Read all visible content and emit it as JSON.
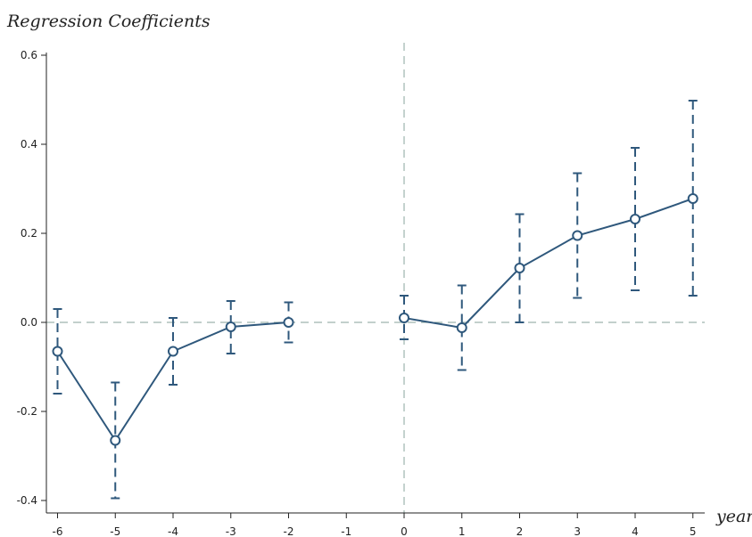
{
  "chart_data": {
    "type": "line",
    "ylabel": "Regression Coefficients",
    "xlabel": "year",
    "xlim": [
      -6,
      5
    ],
    "ylim": [
      -0.4,
      0.6
    ],
    "x_ticks": [
      "-6",
      "-5",
      "-4",
      "-3",
      "-2",
      "-1",
      "0",
      "1",
      "2",
      "3",
      "4",
      "5"
    ],
    "y_ticks": [
      "-0.4",
      "-0.2",
      "0.0",
      "0.2",
      "0.4",
      "0.6"
    ],
    "reference_lines": {
      "horizontal_y": 0,
      "vertical_x": 0
    },
    "series": [
      {
        "segments": [
          [
            {
              "x": -6,
              "y": -0.065,
              "ci_low": -0.16,
              "ci_high": 0.03
            },
            {
              "x": -5,
              "y": -0.265,
              "ci_low": -0.395,
              "ci_high": -0.135
            },
            {
              "x": -4,
              "y": -0.065,
              "ci_low": -0.14,
              "ci_high": 0.01
            },
            {
              "x": -3,
              "y": -0.01,
              "ci_low": -0.07,
              "ci_high": 0.048
            },
            {
              "x": -2,
              "y": 0.0,
              "ci_low": -0.045,
              "ci_high": 0.045
            }
          ],
          [
            {
              "x": 0,
              "y": 0.01,
              "ci_low": -0.038,
              "ci_high": 0.06
            },
            {
              "x": 1,
              "y": -0.012,
              "ci_low": -0.107,
              "ci_high": 0.083
            },
            {
              "x": 2,
              "y": 0.122,
              "ci_low": 0.0,
              "ci_high": 0.243
            },
            {
              "x": 3,
              "y": 0.195,
              "ci_low": 0.055,
              "ci_high": 0.335
            },
            {
              "x": 4,
              "y": 0.232,
              "ci_low": 0.072,
              "ci_high": 0.392
            },
            {
              "x": 5,
              "y": 0.278,
              "ci_low": 0.06,
              "ci_high": 0.498
            }
          ]
        ]
      }
    ],
    "colors": {
      "series": "#2f587c",
      "reference": "#9db5ad",
      "axis": "#222222"
    },
    "grid": false
  }
}
